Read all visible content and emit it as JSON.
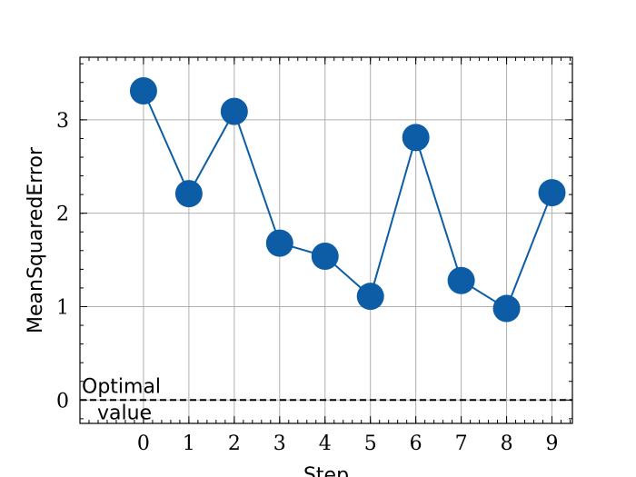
{
  "chart_data": {
    "type": "line",
    "xlabel": "Step",
    "ylabel": "MeanSquaredError",
    "x": [
      0,
      1,
      2,
      3,
      4,
      5,
      6,
      7,
      8,
      9
    ],
    "series": [
      {
        "values": [
          3.31,
          2.21,
          3.09,
          1.68,
          1.54,
          1.11,
          2.81,
          1.28,
          0.98,
          2.22
        ],
        "color": "#0c5da5",
        "marker": "circle"
      }
    ],
    "xticks": [
      "0",
      "1",
      "2",
      "3",
      "4",
      "5",
      "6",
      "7",
      "8",
      "9"
    ],
    "yticks": [
      "0",
      "1",
      "2",
      "3"
    ],
    "xlim": [
      -1.4,
      9.45
    ],
    "ylim": [
      -0.25,
      3.67
    ],
    "grid": true,
    "reference_line": {
      "y": 0,
      "style": "dashed",
      "color": "#000000"
    },
    "annotation": {
      "line1": "Optimal",
      "line2": "value"
    }
  }
}
